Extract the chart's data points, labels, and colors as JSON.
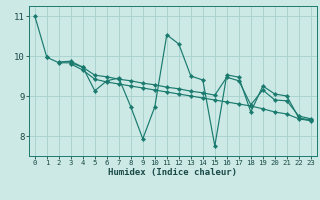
{
  "xlabel": "Humidex (Indice chaleur)",
  "bg_color": "#cce9e6",
  "grid_color": "#aad4d0",
  "line_color": "#1a7a6e",
  "xlim": [
    -0.5,
    23.5
  ],
  "ylim": [
    7.5,
    11.25
  ],
  "xticks": [
    0,
    1,
    2,
    3,
    4,
    5,
    6,
    7,
    8,
    9,
    10,
    11,
    12,
    13,
    14,
    15,
    16,
    17,
    18,
    19,
    20,
    21,
    22,
    23
  ],
  "yticks": [
    8,
    9,
    10,
    11
  ],
  "lines": [
    [
      [
        0,
        11.0
      ],
      [
        1,
        9.97
      ]
    ],
    [
      [
        1,
        9.97
      ],
      [
        2,
        9.83
      ],
      [
        3,
        9.83
      ],
      [
        4,
        9.72
      ],
      [
        5,
        9.13
      ],
      [
        6,
        9.38
      ],
      [
        7,
        9.45
      ],
      [
        8,
        8.73
      ],
      [
        9,
        7.93
      ],
      [
        10,
        8.73
      ],
      [
        11,
        10.53
      ],
      [
        12,
        10.3
      ],
      [
        13,
        9.5
      ],
      [
        14,
        9.4
      ],
      [
        15,
        7.75
      ],
      [
        16,
        9.53
      ],
      [
        17,
        9.47
      ],
      [
        18,
        8.6
      ],
      [
        19,
        9.25
      ],
      [
        20,
        9.05
      ],
      [
        21,
        9.0
      ],
      [
        22,
        8.45
      ],
      [
        23,
        8.4
      ]
    ],
    [
      [
        2,
        9.85
      ],
      [
        3,
        9.87
      ],
      [
        4,
        9.72
      ],
      [
        5,
        9.52
      ],
      [
        6,
        9.48
      ],
      [
        7,
        9.42
      ],
      [
        8,
        9.38
      ],
      [
        9,
        9.32
      ],
      [
        10,
        9.28
      ],
      [
        11,
        9.22
      ],
      [
        12,
        9.18
      ],
      [
        13,
        9.12
      ],
      [
        14,
        9.08
      ],
      [
        15,
        9.02
      ],
      [
        16,
        9.47
      ],
      [
        17,
        9.38
      ],
      [
        18,
        8.78
      ],
      [
        19,
        9.15
      ],
      [
        20,
        8.9
      ],
      [
        21,
        8.88
      ],
      [
        22,
        8.5
      ],
      [
        23,
        8.43
      ]
    ],
    [
      [
        3,
        9.8
      ],
      [
        4,
        9.65
      ],
      [
        5,
        9.42
      ],
      [
        6,
        9.35
      ],
      [
        7,
        9.3
      ],
      [
        8,
        9.25
      ],
      [
        9,
        9.2
      ],
      [
        10,
        9.15
      ],
      [
        11,
        9.1
      ],
      [
        12,
        9.05
      ],
      [
        13,
        9.0
      ],
      [
        14,
        8.95
      ],
      [
        15,
        8.9
      ],
      [
        16,
        8.85
      ],
      [
        17,
        8.8
      ],
      [
        18,
        8.75
      ],
      [
        19,
        8.68
      ],
      [
        20,
        8.6
      ],
      [
        21,
        8.55
      ],
      [
        22,
        8.43
      ],
      [
        23,
        8.38
      ]
    ]
  ]
}
